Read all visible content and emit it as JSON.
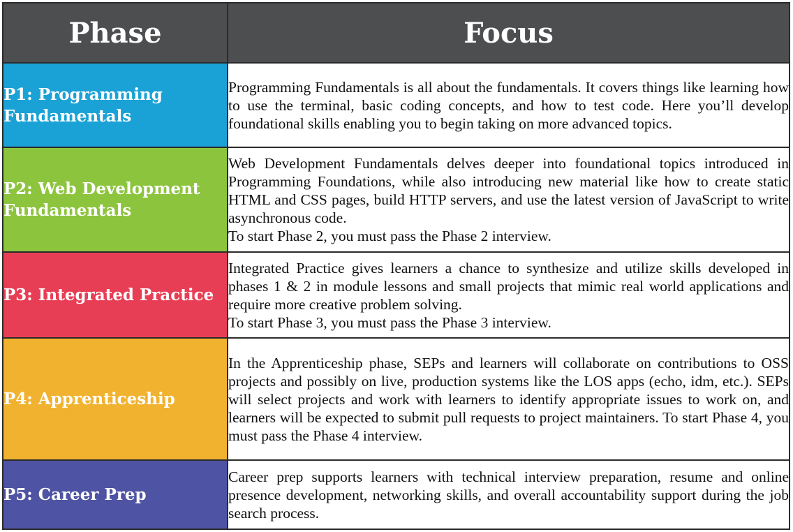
{
  "header": {
    "phase": "Phase",
    "focus": "Focus"
  },
  "rows": [
    {
      "phase": "P1: Programming Fundamentals",
      "color": "#1aa2d6",
      "focus": [
        "Programming Fundamentals is all about the fundamentals. It covers things like learning how to use the terminal, basic coding concepts, and how to test code. Here you’ll develop foundational skills enabling you to begin taking on more advanced topics."
      ]
    },
    {
      "phase": "P2: Web Development Fundamentals",
      "color": "#8dc43e",
      "focus": [
        "Web Development Fundamentals delves deeper into foundational topics introduced in Programming Foundations, while also introducing new material like how to create static HTML and CSS pages, build HTTP servers, and use the latest version of JavaScript to write asynchronous code.",
        "To start Phase 2, you must pass the Phase 2 interview."
      ]
    },
    {
      "phase": "P3: Integrated Practice",
      "color": "#e83e55",
      "focus": [
        "Integrated Practice gives learners a chance to synthesize and utilize skills developed in phases 1 & 2 in module lessons and small projects that mimic real world applications and require more creative problem solving.",
        "To start Phase 3, you must pass the Phase 3 interview."
      ]
    },
    {
      "phase": "P4: Apprenticeship",
      "color": "#f1b22f",
      "focus": [
        "In the Apprenticeship phase, SEPs and learners will collaborate on contributions to OSS projects and possibly on live, production systems like the LOS apps (echo, idm, etc.). SEPs will select projects and work with learners to identify appropriate issues to work on, and learners will be expected to submit pull requests to project maintainers. To start Phase 4, you must pass the Phase 4 interview."
      ]
    },
    {
      "phase": "P5: Career Prep",
      "color": "#4f53a3",
      "focus": [
        "Career prep supports learners with technical interview preparation, resume and online presence development, networking skills, and overall accountability support during the job search process."
      ]
    }
  ]
}
